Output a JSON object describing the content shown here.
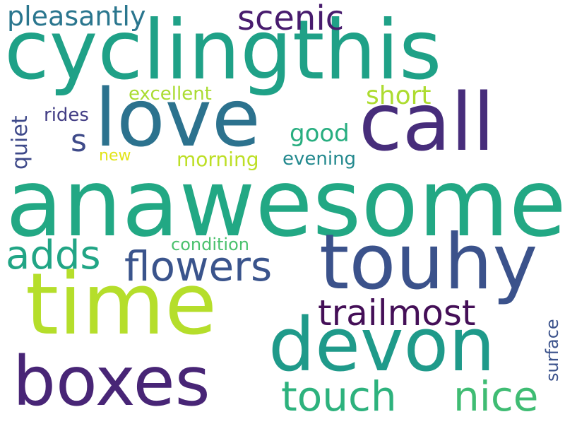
{
  "words": [
    {
      "text": "cyclingthis",
      "color": "#1fa187"
    },
    {
      "text": "anawesome",
      "color": "#22a884"
    },
    {
      "text": "love",
      "color": "#2c728e"
    },
    {
      "text": "call",
      "color": "#472d7b"
    },
    {
      "text": "time",
      "color": "#b5de2b"
    },
    {
      "text": "touhy",
      "color": "#3b528b"
    },
    {
      "text": "devon",
      "color": "#1f9a8a"
    },
    {
      "text": "boxes",
      "color": "#482576"
    },
    {
      "text": "flowers",
      "color": "#3a548c"
    },
    {
      "text": "touch",
      "color": "#2db27d"
    },
    {
      "text": "nice",
      "color": "#3fbc73"
    },
    {
      "text": "trailmost",
      "color": "#440f57"
    },
    {
      "text": "adds",
      "color": "#21a585"
    },
    {
      "text": "scenic",
      "color": "#481c6e"
    },
    {
      "text": "pleasantly",
      "color": "#2a768e"
    },
    {
      "text": "short",
      "color": "#addc30"
    },
    {
      "text": "good",
      "color": "#28ae80"
    },
    {
      "text": "s",
      "color": "#3e4a89"
    },
    {
      "text": "quiet",
      "color": "#3e4989"
    },
    {
      "text": "excellent",
      "color": "#aadc32"
    },
    {
      "text": "rides",
      "color": "#433e85"
    },
    {
      "text": "new",
      "color": "#e2e418"
    },
    {
      "text": "morning",
      "color": "#bddf26"
    },
    {
      "text": "evening",
      "color": "#23898e"
    },
    {
      "text": "condition",
      "color": "#4ac16d"
    },
    {
      "text": "surface",
      "color": "#3b528b"
    }
  ]
}
